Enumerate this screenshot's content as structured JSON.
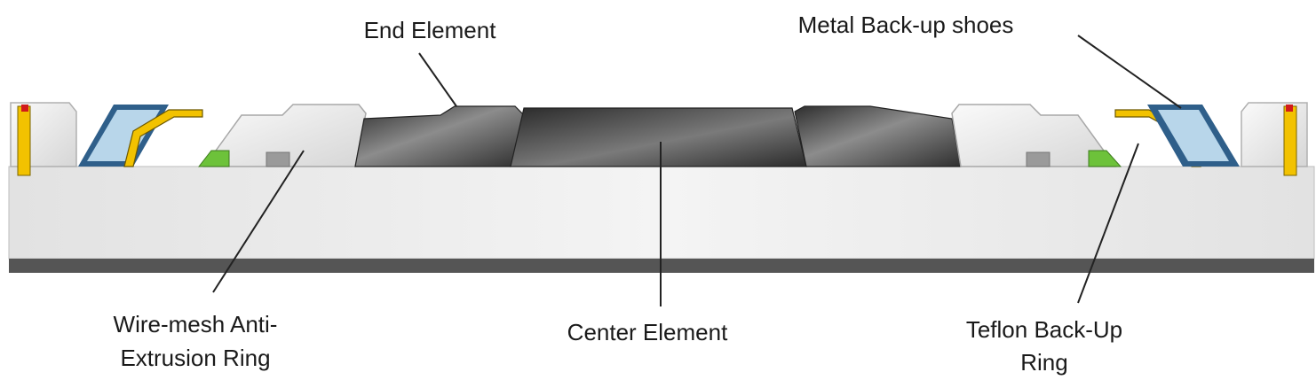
{
  "labels": {
    "end_element": "End Element",
    "metal_backup_shoes": "Metal Back-up shoes",
    "wire_mesh_line1": "Wire-mesh Anti-",
    "wire_mesh_line2": "Extrusion Ring",
    "center_element": "Center Element",
    "teflon_line1": "Teflon Back-Up",
    "teflon_line2": "Ring"
  },
  "colors": {
    "rubber_dark": "#3c3c3c",
    "rubber_light": "#8a8a8a",
    "metal_shoe": "#f2c200",
    "teflon_blue": "#2f5f8a",
    "teflon_light": "#b8d6ea",
    "wire_mesh_green": "#6dc23a",
    "mandrel_light": "#ececec",
    "mandrel_base": "#555555",
    "marker_red": "#d11a1a"
  }
}
